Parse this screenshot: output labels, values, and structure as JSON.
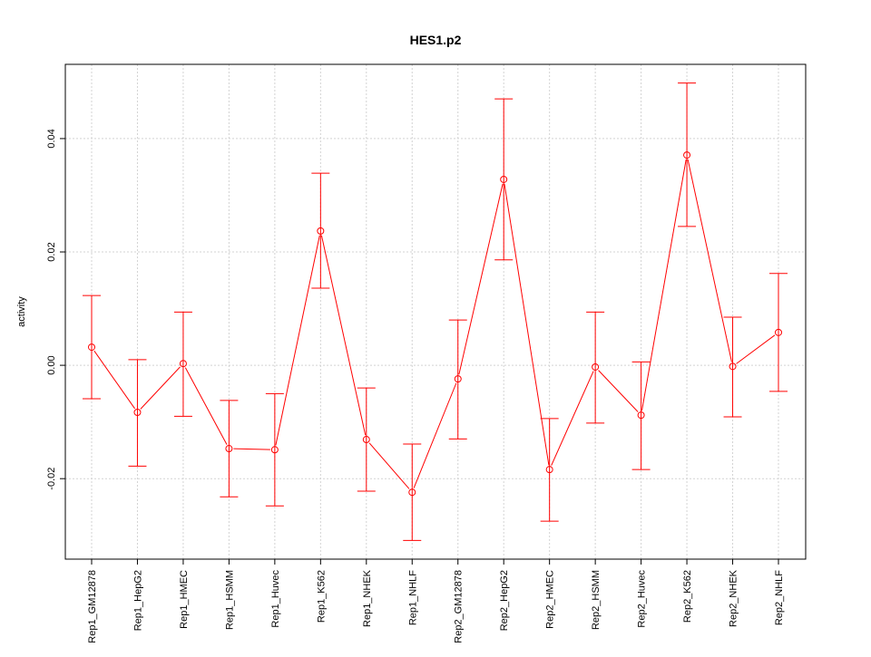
{
  "chart_data": {
    "type": "line",
    "title": "HES1.p2",
    "xlabel": "",
    "ylabel": "activity",
    "ylim": [
      -0.0342,
      0.0531
    ],
    "yticks": [
      -0.02,
      0.0,
      0.02,
      0.04
    ],
    "ytick_labels": [
      "-0.02",
      "0.00",
      "0.02",
      "0.04"
    ],
    "grid": true,
    "color": "#ff0000",
    "categories": [
      "Rep1_GM12878",
      "Rep1_HepG2",
      "Rep1_HMEC",
      "Rep1_HSMM",
      "Rep1_Huvec",
      "Rep1_K562",
      "Rep1_NHEK",
      "Rep1_NHLF",
      "Rep2_GM12878",
      "Rep2_HepG2",
      "Rep2_HMEC",
      "Rep2_HSMM",
      "Rep2_Huvec",
      "Rep2_K562",
      "Rep2_NHEK",
      "Rep2_NHLF"
    ],
    "values": [
      0.0032,
      -0.0083,
      0.0003,
      -0.0147,
      -0.0149,
      0.0237,
      -0.0131,
      -0.0224,
      -0.0024,
      0.0328,
      -0.0184,
      -0.0003,
      -0.0088,
      0.0371,
      -0.0002,
      0.0058
    ],
    "upper": [
      0.0123,
      0.001,
      0.0094,
      -0.0062,
      -0.005,
      0.0339,
      -0.004,
      -0.0139,
      0.008,
      0.047,
      -0.0094,
      0.0094,
      0.0006,
      0.0498,
      0.0085,
      0.0162
    ],
    "lower": [
      -0.0059,
      -0.0178,
      -0.009,
      -0.0232,
      -0.0248,
      0.0136,
      -0.0222,
      -0.0309,
      -0.013,
      0.0186,
      -0.0275,
      -0.0102,
      -0.0184,
      0.0245,
      -0.0091,
      -0.0046
    ]
  }
}
